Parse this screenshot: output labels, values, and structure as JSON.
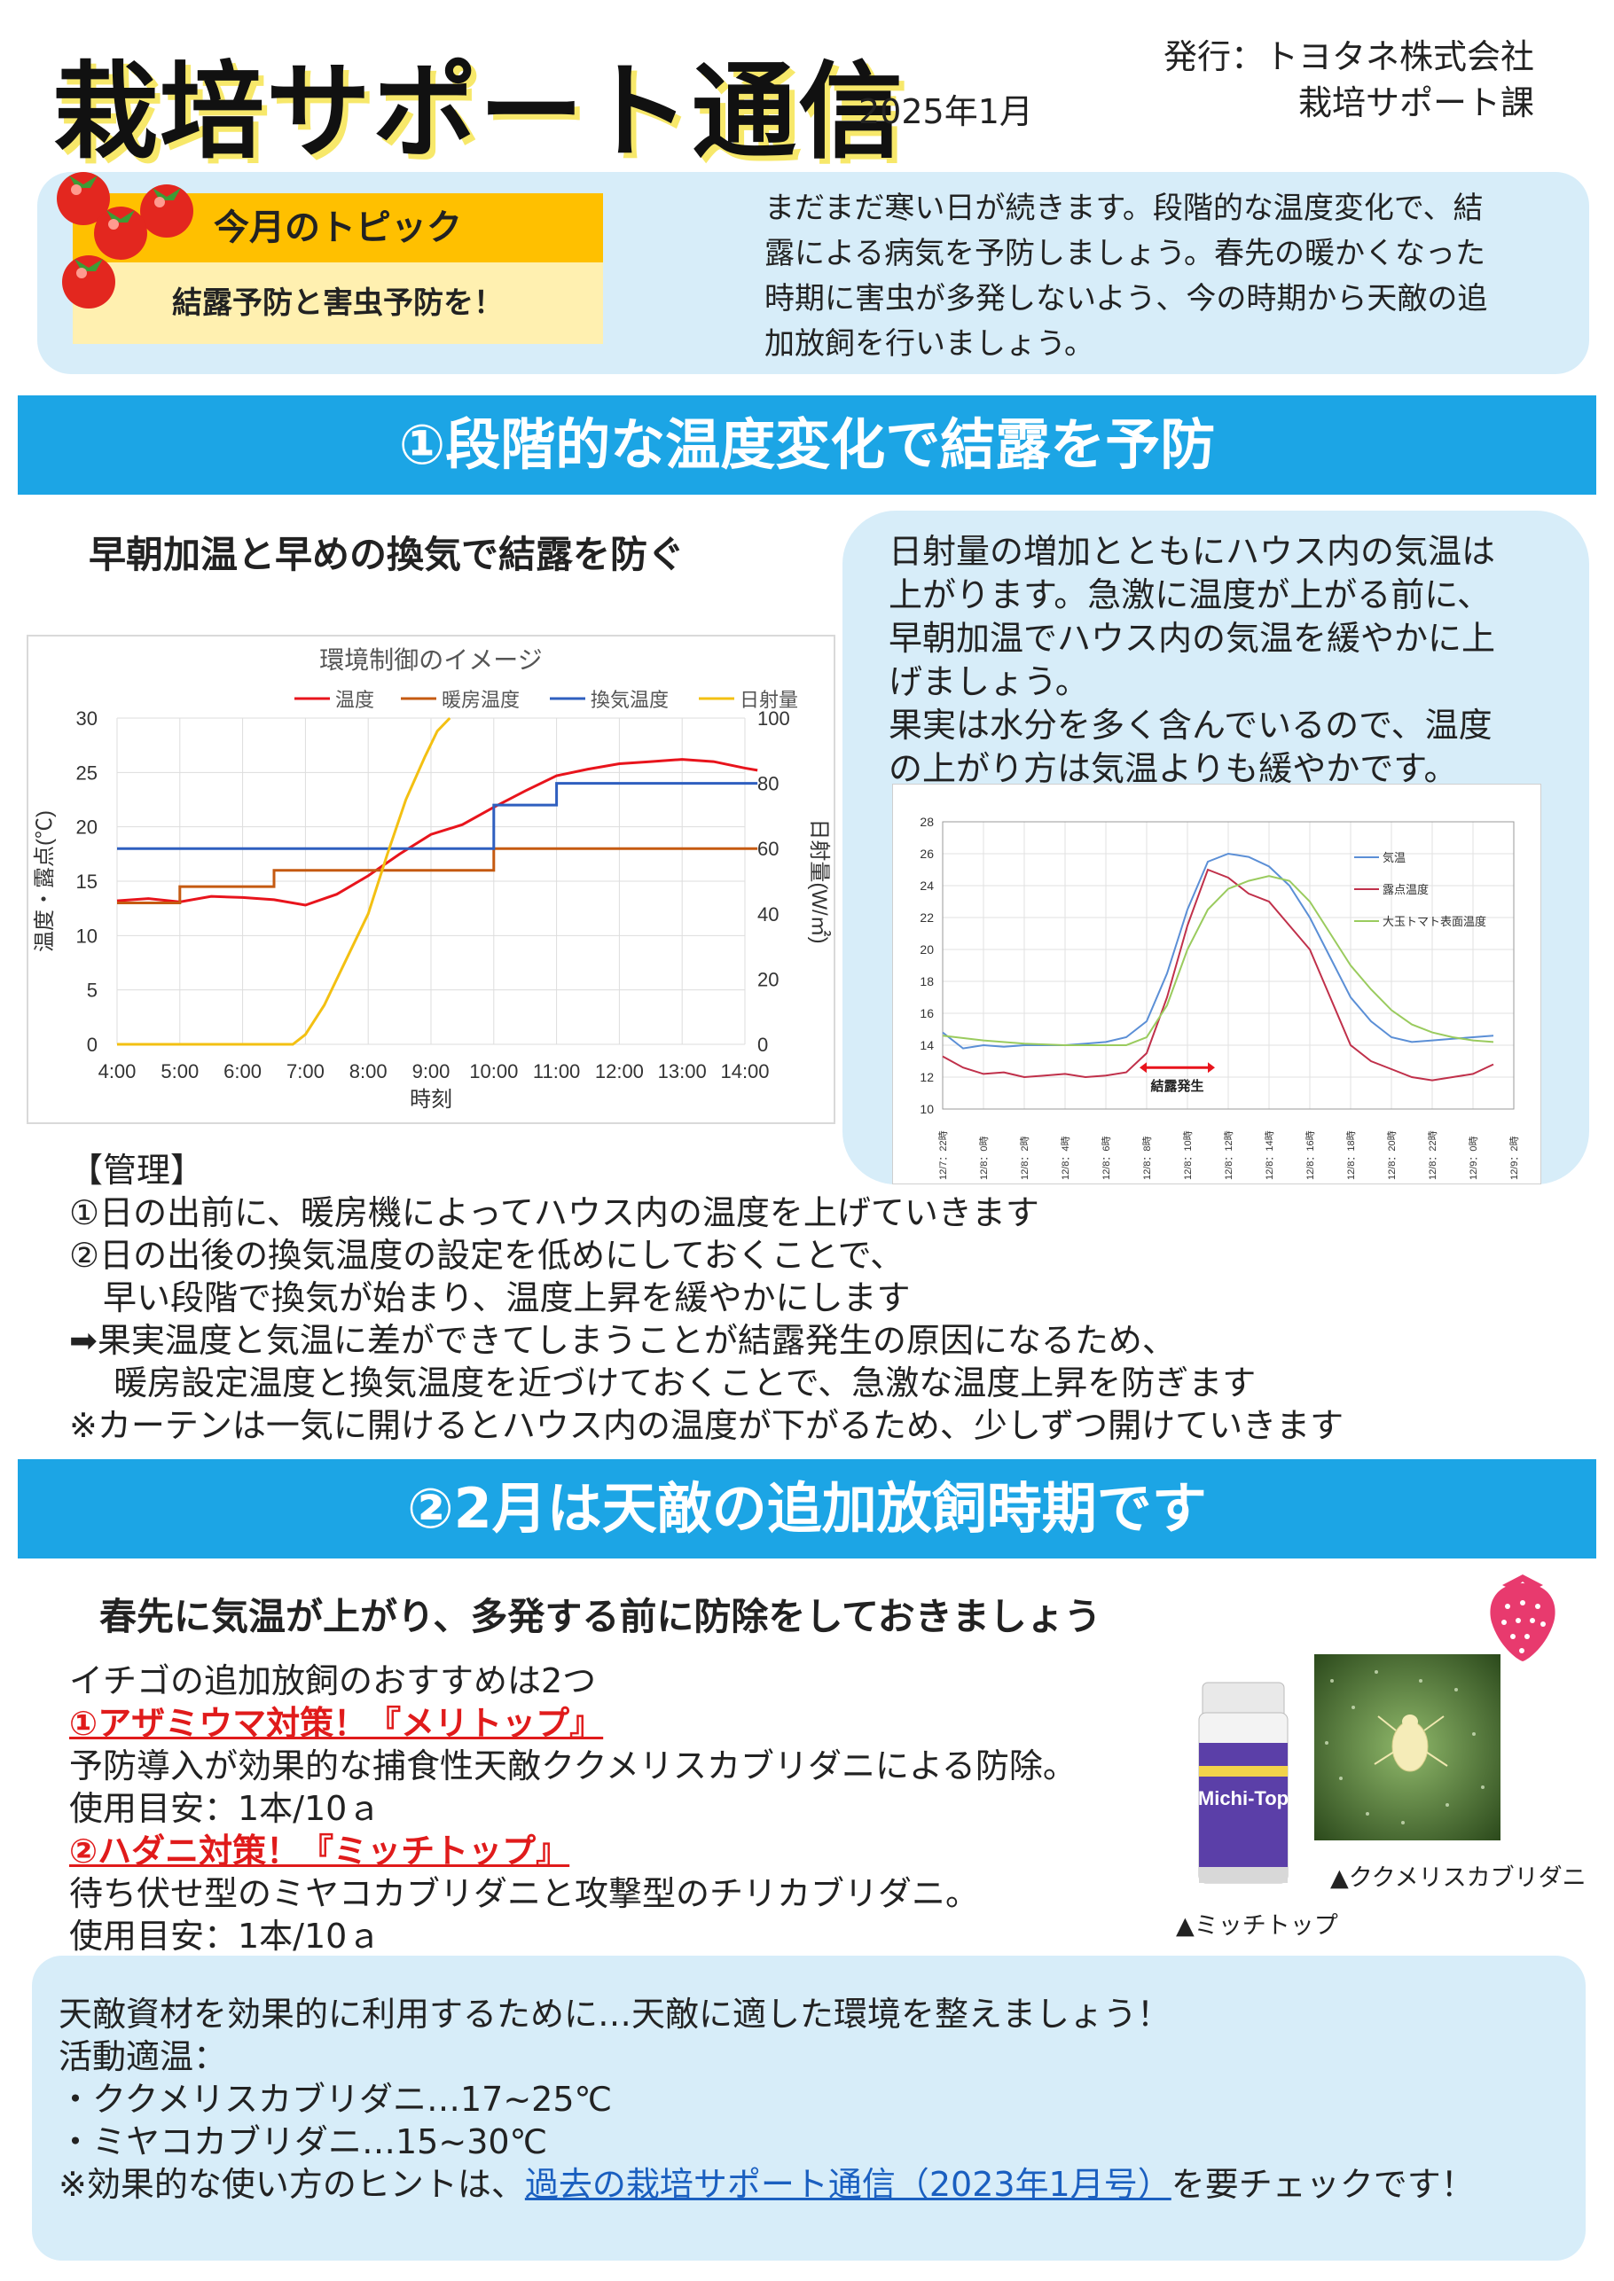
{
  "header": {
    "title": "栽培サポート通信",
    "issue_date": "2025年1月",
    "publisher_line1": "発行：トヨタネ株式会社",
    "publisher_line2": "栽培サポート課"
  },
  "topic": {
    "heading": "今月のトピック",
    "subheading": "結露予防と害虫予防を！",
    "intro_lines": [
      "まだまだ寒い日が続きます。段階的な温度変化で、結",
      "露による病気を予防しましょう。春先の暖かくなった",
      "時期に害虫が多発しないよう、今の時期から天敵の追",
      "加放飼を行いましょう。"
    ]
  },
  "section1": {
    "banner": "①段階的な温度変化で結露を予防",
    "subheading": "早朝加温と早めの換気で結露を防ぐ",
    "desc_lines": [
      "日射量の増加とともにハウス内の気温は",
      "上がります。急激に温度が上がる前に、",
      "早朝加温でハウス内の気温を緩やかに上",
      "げましょう。",
      "果実は水分を多く含んでいるので、温度",
      "の上がり方は気温よりも緩やかです。"
    ],
    "management": [
      "【管理】",
      "①日の出前に、暖房機によってハウス内の温度を上げていきます",
      "②日の出後の換気温度の設定を低めにしておくことで、",
      "　早い段階で換気が始まり、温度上昇を緩やかにします",
      "➡果実温度と気温に差ができてしまうことが結露発生の原因になるため、",
      "　 暖房設定温度と換気温度を近づけておくことで、急激な温度上昇を防ぎます",
      "※カーテンは一気に開けるとハウス内の温度が下がるため、少しずつ開けていきます"
    ]
  },
  "section2": {
    "banner": "②2月は天敵の追加放飼時期です",
    "subheading": "春先に気温が上がり、多発する前に防除をしておきましょう",
    "intro": "イチゴの追加放飼のおすすめは2つ",
    "item1_title": "①アザミウマ対策！『メリトップ』",
    "item1_desc": "予防導入が効果的な捕食性天敵ククメリスカブリダニによる防除。",
    "item1_usage": "使用目安：1本/10ａ",
    "item2_title": "②ハダニ対策！『ミッチトップ』",
    "item2_desc": "待ち伏せ型のミヤコカブリダニと攻撃型のチリカブリダニ。",
    "item2_usage": "使用目安：1本/10ａ",
    "caption_mite": "▲ククメリスカブリダニ",
    "caption_product": "▲ミッチトップ",
    "product_label": "Michi-Top",
    "bottom_line1": "天敵資材を効果的に利用するために…天敵に適した環境を整えましょう！",
    "bottom_line2": "活動適温：",
    "bottom_line3": "・ククメリスカブリダニ…17~25℃",
    "bottom_line4": "・ミヤコカブリダニ…15~30℃",
    "bottom_line5_pre": "※効果的な使い方のヒントは、",
    "bottom_link": "過去の栽培サポート通信（2023年1月号）",
    "bottom_line5_post": "を要チェックです！"
  },
  "chart_data": [
    {
      "type": "line",
      "title": "環境制御のイメージ",
      "xlabel": "時刻",
      "ylabel": "温度・露点(℃)",
      "y2label": "日射量(W/㎡)",
      "ylim": [
        0,
        30
      ],
      "y2lim": [
        0,
        100
      ],
      "x_ticks": [
        "4:00",
        "5:00",
        "6:00",
        "7:00",
        "8:00",
        "9:00",
        "10:00",
        "11:00",
        "12:00",
        "13:00",
        "14:00"
      ],
      "y_ticks": [
        "0",
        "5",
        "10",
        "15",
        "20",
        "25",
        "30"
      ],
      "y2_ticks": [
        "0",
        "20",
        "40",
        "60",
        "80",
        "100"
      ],
      "grid": true,
      "legend": "top",
      "series": [
        {
          "name": "温度",
          "color": "#e8141c",
          "axis": "left",
          "x": [
            4,
            4.5,
            5,
            5.5,
            6,
            6.5,
            7,
            7.5,
            8,
            8.5,
            9,
            9.5,
            10,
            10.5,
            11,
            11.5,
            12,
            12.5,
            13,
            13.5,
            14,
            14.2
          ],
          "values": [
            13.2,
            13.4,
            13.1,
            13.6,
            13.5,
            13.3,
            12.8,
            13.8,
            15.5,
            17.5,
            19.3,
            20.2,
            21.8,
            23.3,
            24.7,
            25.3,
            25.8,
            26.0,
            26.2,
            26.0,
            25.4,
            25.2
          ]
        },
        {
          "name": "暖房温度",
          "color": "#c55a11",
          "axis": "left",
          "x": [
            4,
            5,
            5,
            6.5,
            6.5,
            8,
            8,
            10,
            10,
            14.2
          ],
          "values": [
            13,
            13,
            14.5,
            14.5,
            16,
            16,
            16,
            16,
            18,
            18
          ]
        },
        {
          "name": "換気温度",
          "color": "#2f5fbf",
          "axis": "left",
          "x": [
            4,
            8,
            8,
            10,
            10,
            11,
            11,
            14.2
          ],
          "values": [
            18,
            18,
            18,
            18,
            22,
            22,
            24,
            24
          ]
        },
        {
          "name": "日射量",
          "color": "#f3c012",
          "axis": "right",
          "x": [
            4,
            6.8,
            7,
            7.3,
            7.6,
            8,
            8.3,
            8.6,
            8.9,
            9.1,
            9.3
          ],
          "values": [
            0,
            0,
            3,
            12,
            24,
            40,
            58,
            75,
            88,
            96,
            100
          ]
        }
      ]
    },
    {
      "type": "line",
      "y_ticks": [
        "10",
        "12",
        "14",
        "16",
        "18",
        "20",
        "22",
        "24",
        "26",
        "28"
      ],
      "ylim": [
        10,
        28
      ],
      "x_ticks": [
        "12/7：22時",
        "12/8：0時",
        "12/8：2時",
        "12/8：4時",
        "12/8：6時",
        "12/8：8時",
        "12/8：10時",
        "12/8：12時",
        "12/8：14時",
        "12/8：16時",
        "12/8：18時",
        "12/8：20時",
        "12/8：22時",
        "12/9：0時",
        "12/9：2時"
      ],
      "annotation": "結露発生",
      "legend": "right",
      "series": [
        {
          "name": "気温",
          "color": "#5b8fd6",
          "x": [
            0,
            0.5,
            1,
            1.5,
            2,
            2.5,
            3,
            3.5,
            4,
            4.5,
            5,
            5.5,
            6,
            6.5,
            7,
            7.5,
            8,
            8.5,
            9,
            9.5,
            10,
            10.5,
            11,
            11.5,
            12,
            12.5,
            13,
            13.5
          ],
          "values": [
            14.8,
            13.8,
            14.0,
            13.9,
            14.0,
            14.0,
            14.0,
            14.1,
            14.2,
            14.5,
            15.5,
            18.5,
            22.5,
            25.5,
            26.0,
            25.8,
            25.2,
            24.0,
            22.0,
            19.5,
            17.0,
            15.5,
            14.5,
            14.2,
            14.3,
            14.4,
            14.5,
            14.6
          ]
        },
        {
          "name": "露点温度",
          "color": "#c0304a",
          "x": [
            0,
            0.5,
            1,
            1.5,
            2,
            2.5,
            3,
            3.5,
            4,
            4.5,
            5,
            5.5,
            6,
            6.5,
            7,
            7.5,
            8,
            8.5,
            9,
            9.5,
            10,
            10.5,
            11,
            11.5,
            12,
            12.5,
            13,
            13.5
          ],
          "values": [
            13.3,
            12.6,
            12.2,
            12.3,
            12.0,
            12.1,
            12.2,
            12.0,
            12.1,
            12.3,
            13.5,
            17.0,
            21.5,
            25.0,
            24.5,
            23.5,
            23.0,
            21.5,
            20.0,
            17.0,
            14.0,
            13.0,
            12.5,
            12.0,
            11.8,
            12.0,
            12.2,
            12.8
          ]
        },
        {
          "name": "大玉トマト表面温度",
          "color": "#9acb5e",
          "x": [
            0,
            1,
            2,
            3,
            4,
            4.5,
            5,
            5.5,
            6,
            6.5,
            7,
            7.5,
            8,
            8.5,
            9,
            9.5,
            10,
            10.5,
            11,
            11.5,
            12,
            12.5,
            13,
            13.5
          ],
          "values": [
            14.6,
            14.3,
            14.1,
            14.0,
            14.0,
            14.0,
            14.5,
            16.5,
            20.0,
            22.5,
            23.8,
            24.3,
            24.6,
            24.3,
            23.0,
            21.0,
            19.0,
            17.5,
            16.2,
            15.3,
            14.8,
            14.5,
            14.3,
            14.2
          ]
        }
      ]
    }
  ]
}
